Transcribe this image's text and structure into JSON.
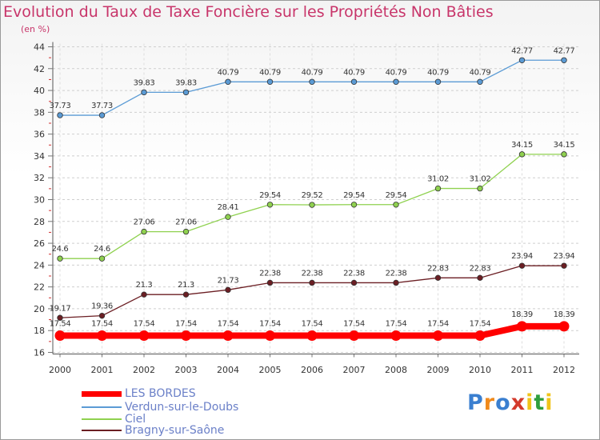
{
  "chart_data": {
    "type": "line",
    "title": "Evolution du Taux de Taxe Foncière sur les Propriétés Non Bâties",
    "ylabel": "(en %)",
    "xlabel": "",
    "categories": [
      "2000",
      "2001",
      "2002",
      "2003",
      "2004",
      "2005",
      "2006",
      "2007",
      "2008",
      "2009",
      "2010",
      "2011",
      "2012"
    ],
    "ylim": [
      16,
      44
    ],
    "yticks": [
      "16",
      "18",
      "20",
      "22",
      "24",
      "26",
      "28",
      "30",
      "32",
      "34",
      "36",
      "38",
      "40",
      "42",
      "44"
    ],
    "series": [
      {
        "name": "Verdun-sur-le-Doubs",
        "color": "#5b9bd5",
        "values": [
          37.73,
          37.73,
          39.83,
          39.83,
          40.79,
          40.79,
          40.79,
          40.79,
          40.79,
          40.79,
          40.79,
          42.77,
          42.77
        ],
        "labels": [
          "37.73",
          "37.73",
          "39.83",
          "39.83",
          "40.79",
          "40.79",
          "40.79",
          "40.79",
          "40.79",
          "40.79",
          "40.79",
          "42.77",
          "42.77"
        ]
      },
      {
        "name": "Ciel",
        "color": "#8fd14f",
        "values": [
          24.6,
          24.6,
          27.06,
          27.06,
          28.41,
          29.54,
          29.52,
          29.54,
          29.54,
          31.02,
          31.02,
          34.15,
          34.15
        ],
        "labels": [
          "24.6",
          "24.6",
          "27.06",
          "27.06",
          "28.41",
          "29.54",
          "29.52",
          "29.54",
          "29.54",
          "31.02",
          "31.02",
          "34.15",
          "34.15"
        ]
      },
      {
        "name": "Bragny-sur-Saône",
        "color": "#6b1e23",
        "values": [
          19.17,
          19.36,
          21.3,
          21.3,
          21.73,
          22.38,
          22.38,
          22.38,
          22.38,
          22.83,
          22.83,
          23.94,
          23.94
        ],
        "labels": [
          "19.17",
          "19.36",
          "21.3",
          "21.3",
          "21.73",
          "22.38",
          "22.38",
          "22.38",
          "22.38",
          "22.83",
          "22.83",
          "23.94",
          "23.94"
        ]
      },
      {
        "name": "LES BORDES",
        "color": "#ff0000",
        "values": [
          17.54,
          17.54,
          17.54,
          17.54,
          17.54,
          17.54,
          17.54,
          17.54,
          17.54,
          17.54,
          17.54,
          18.39,
          18.39
        ],
        "labels": [
          "17.54",
          "17.54",
          "17.54",
          "17.54",
          "17.54",
          "17.54",
          "17.54",
          "17.54",
          "17.54",
          "17.54",
          "17.54",
          "18.39",
          "18.39"
        ]
      }
    ],
    "legend": [
      "LES BORDES",
      "Verdun-sur-le-Doubs",
      "Ciel",
      "Bragny-sur-Saône"
    ],
    "legend_position": "bottom-left",
    "grid": true
  },
  "logo": {
    "text": "Proxiti",
    "letters": [
      "P",
      "r",
      "o",
      "x",
      "i",
      "t",
      "i"
    ],
    "colors": [
      "#3a7fd0",
      "#f08a1c",
      "#3a7fd0",
      "#d33a2c",
      "#f0c419",
      "#2e9e3d",
      "#f0c419"
    ]
  }
}
